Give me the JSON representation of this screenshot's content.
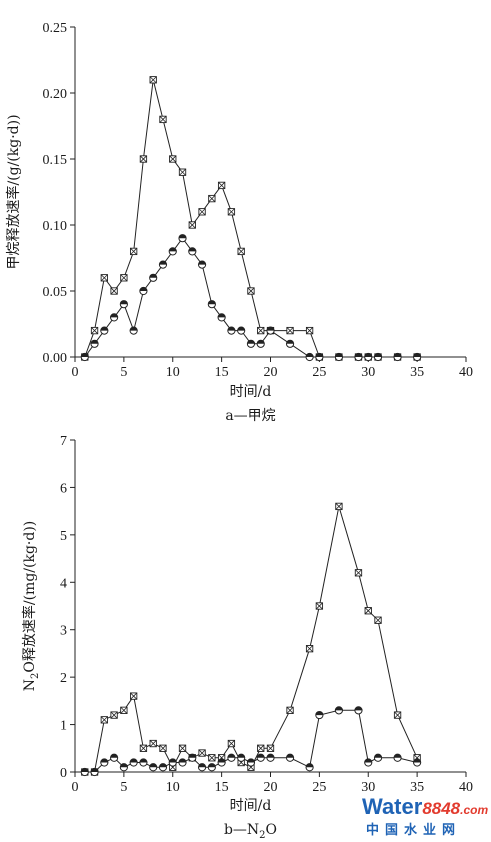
{
  "chart_data": [
    {
      "type": "line",
      "xlim": [
        0,
        40
      ],
      "ylim": [
        0,
        0.25
      ],
      "xticks": [
        "0",
        "5",
        "10",
        "15",
        "20",
        "25",
        "30",
        "35",
        "40"
      ],
      "yticks": [
        "0.00",
        "0.05",
        "0.10",
        "0.15",
        "0.20",
        "0.25"
      ],
      "xlabel": "时间/d",
      "ylabel": "甲烷释放速率/(g/(kg·d))",
      "caption": "a—甲烷",
      "grid": false,
      "series": [
        {
          "marker": "crossed-square",
          "points": [
            [
              1,
              0.0
            ],
            [
              2,
              0.02
            ],
            [
              3,
              0.06
            ],
            [
              4,
              0.05
            ],
            [
              5,
              0.06
            ],
            [
              6,
              0.08
            ],
            [
              7,
              0.15
            ],
            [
              8,
              0.21
            ],
            [
              9,
              0.18
            ],
            [
              10,
              0.15
            ],
            [
              11,
              0.14
            ],
            [
              12,
              0.1
            ],
            [
              13,
              0.11
            ],
            [
              14,
              0.12
            ],
            [
              15,
              0.13
            ],
            [
              16,
              0.11
            ],
            [
              17,
              0.08
            ],
            [
              18,
              0.05
            ],
            [
              19,
              0.02
            ],
            [
              20,
              0.02
            ],
            [
              22,
              0.02
            ],
            [
              24,
              0.02
            ],
            [
              25,
              0.0
            ],
            [
              27,
              0.0
            ],
            [
              29,
              0.0
            ],
            [
              30,
              0.0
            ],
            [
              31,
              0.0
            ],
            [
              33,
              0.0
            ],
            [
              35,
              0.0
            ]
          ]
        },
        {
          "marker": "half-filled-circle",
          "points": [
            [
              1,
              0.0
            ],
            [
              2,
              0.01
            ],
            [
              3,
              0.02
            ],
            [
              4,
              0.03
            ],
            [
              5,
              0.04
            ],
            [
              6,
              0.02
            ],
            [
              7,
              0.05
            ],
            [
              8,
              0.06
            ],
            [
              9,
              0.07
            ],
            [
              10,
              0.08
            ],
            [
              11,
              0.09
            ],
            [
              12,
              0.08
            ],
            [
              13,
              0.07
            ],
            [
              14,
              0.04
            ],
            [
              15,
              0.03
            ],
            [
              16,
              0.02
            ],
            [
              17,
              0.02
            ],
            [
              18,
              0.01
            ],
            [
              19,
              0.01
            ],
            [
              20,
              0.02
            ],
            [
              22,
              0.01
            ],
            [
              24,
              0.0
            ],
            [
              25,
              0.0
            ],
            [
              27,
              0.0
            ],
            [
              29,
              0.0
            ],
            [
              30,
              0.0
            ],
            [
              31,
              0.0
            ],
            [
              33,
              0.0
            ],
            [
              35,
              0.0
            ]
          ]
        }
      ]
    },
    {
      "type": "line",
      "xlim": [
        0,
        40
      ],
      "ylim": [
        0,
        7
      ],
      "xticks": [
        "0",
        "5",
        "10",
        "15",
        "20",
        "25",
        "30",
        "35",
        "40"
      ],
      "yticks": [
        "0",
        "1",
        "2",
        "3",
        "4",
        "5",
        "6",
        "7"
      ],
      "xlabel": "时间/d",
      "ylabel": "N2O释放速率/(mg/(kg·d))",
      "caption": "b—N2O",
      "grid": false,
      "series": [
        {
          "marker": "crossed-square",
          "points": [
            [
              1,
              0.0
            ],
            [
              2,
              0.0
            ],
            [
              3,
              1.1
            ],
            [
              4,
              1.2
            ],
            [
              5,
              1.3
            ],
            [
              6,
              1.6
            ],
            [
              7,
              0.5
            ],
            [
              8,
              0.6
            ],
            [
              9,
              0.5
            ],
            [
              10,
              0.1
            ],
            [
              11,
              0.5
            ],
            [
              12,
              0.3
            ],
            [
              13,
              0.4
            ],
            [
              14,
              0.3
            ],
            [
              15,
              0.3
            ],
            [
              16,
              0.6
            ],
            [
              17,
              0.2
            ],
            [
              18,
              0.1
            ],
            [
              19,
              0.5
            ],
            [
              20,
              0.5
            ],
            [
              22,
              1.3
            ],
            [
              24,
              2.6
            ],
            [
              25,
              3.5
            ],
            [
              27,
              5.6
            ],
            [
              29,
              4.2
            ],
            [
              30,
              3.4
            ],
            [
              31,
              3.2
            ],
            [
              33,
              1.2
            ],
            [
              35,
              0.3
            ]
          ]
        },
        {
          "marker": "half-filled-circle",
          "points": [
            [
              1,
              0.0
            ],
            [
              2,
              0.0
            ],
            [
              3,
              0.2
            ],
            [
              4,
              0.3
            ],
            [
              5,
              0.1
            ],
            [
              6,
              0.2
            ],
            [
              7,
              0.2
            ],
            [
              8,
              0.1
            ],
            [
              9,
              0.1
            ],
            [
              10,
              0.2
            ],
            [
              11,
              0.2
            ],
            [
              12,
              0.3
            ],
            [
              13,
              0.1
            ],
            [
              14,
              0.1
            ],
            [
              15,
              0.2
            ],
            [
              16,
              0.3
            ],
            [
              17,
              0.3
            ],
            [
              18,
              0.2
            ],
            [
              19,
              0.3
            ],
            [
              20,
              0.3
            ],
            [
              22,
              0.3
            ],
            [
              24,
              0.1
            ],
            [
              25,
              1.2
            ],
            [
              27,
              1.3
            ],
            [
              29,
              1.3
            ],
            [
              30,
              0.2
            ],
            [
              31,
              0.3
            ],
            [
              33,
              0.3
            ],
            [
              35,
              0.2
            ]
          ]
        }
      ]
    }
  ],
  "watermark": {
    "brand_a": "Water",
    "brand_b": "8848",
    "brand_c": ".com",
    "tagline": "中国水业网",
    "colors": {
      "blue": "#1f63b5",
      "red": "#e23b2e"
    }
  }
}
